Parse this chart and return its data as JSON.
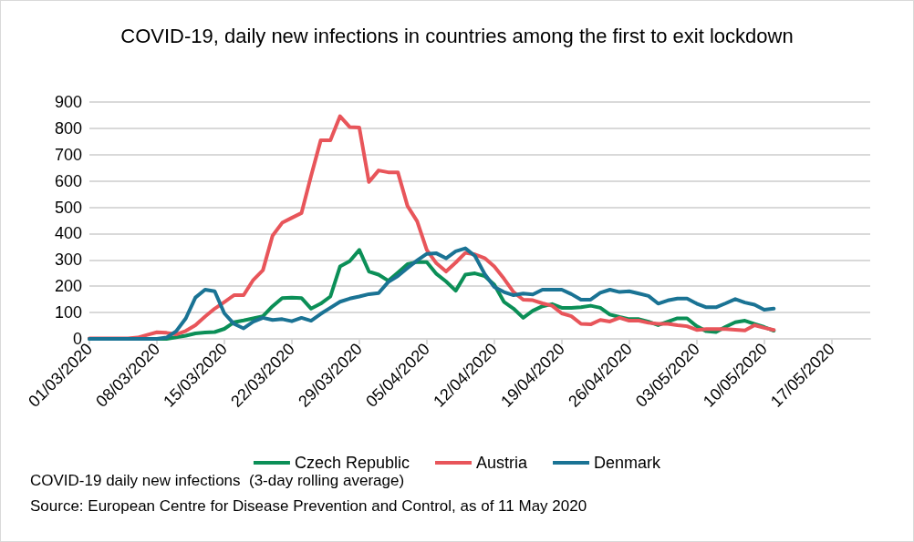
{
  "chart_data": {
    "type": "line",
    "title": "COVID-19, daily new infections in countries among the first to exit lockdown",
    "x": [
      "2020-03-01",
      "2020-03-02",
      "2020-03-03",
      "2020-03-04",
      "2020-03-05",
      "2020-03-06",
      "2020-03-07",
      "2020-03-08",
      "2020-03-09",
      "2020-03-10",
      "2020-03-11",
      "2020-03-12",
      "2020-03-13",
      "2020-03-14",
      "2020-03-15",
      "2020-03-16",
      "2020-03-17",
      "2020-03-18",
      "2020-03-19",
      "2020-03-20",
      "2020-03-21",
      "2020-03-22",
      "2020-03-23",
      "2020-03-24",
      "2020-03-25",
      "2020-03-26",
      "2020-03-27",
      "2020-03-28",
      "2020-03-29",
      "2020-03-30",
      "2020-03-31",
      "2020-04-01",
      "2020-04-02",
      "2020-04-03",
      "2020-04-04",
      "2020-04-05",
      "2020-04-06",
      "2020-04-07",
      "2020-04-08",
      "2020-04-09",
      "2020-04-10",
      "2020-04-11",
      "2020-04-12",
      "2020-04-13",
      "2020-04-14",
      "2020-04-15",
      "2020-04-16",
      "2020-04-17",
      "2020-04-18",
      "2020-04-19",
      "2020-04-20",
      "2020-04-21",
      "2020-04-22",
      "2020-04-23",
      "2020-04-24",
      "2020-04-25",
      "2020-04-26",
      "2020-04-27",
      "2020-04-28",
      "2020-04-29",
      "2020-04-30",
      "2020-05-01",
      "2020-05-02",
      "2020-05-03",
      "2020-05-04",
      "2020-05-05",
      "2020-05-06",
      "2020-05-07",
      "2020-05-08",
      "2020-05-09",
      "2020-05-10",
      "2020-05-11"
    ],
    "series": [
      {
        "name": "Czech Republic",
        "color": "#0b8f57",
        "values": [
          0,
          0,
          0,
          0,
          0,
          0,
          0,
          0,
          0,
          6,
          12,
          21,
          24,
          26,
          38,
          63,
          70,
          78,
          86,
          124,
          155,
          157,
          155,
          115,
          134,
          161,
          275,
          295,
          338,
          256,
          244,
          221,
          252,
          284,
          292,
          292,
          247,
          218,
          183,
          244,
          249,
          239,
          206,
          141,
          115,
          80,
          107,
          124,
          132,
          118,
          118,
          120,
          126,
          118,
          92,
          83,
          75,
          75,
          65,
          52,
          65,
          78,
          78,
          48,
          29,
          26,
          46,
          63,
          69,
          57,
          45,
          31
        ]
      },
      {
        "name": "Austria",
        "color": "#e8555a",
        "values": [
          2,
          2,
          2,
          2,
          2,
          5,
          15,
          25,
          23,
          17,
          30,
          52,
          85,
          115,
          140,
          166,
          166,
          224,
          261,
          392,
          441,
          460,
          478,
          620,
          755,
          755,
          846,
          805,
          803,
          596,
          640,
          633,
          633,
          505,
          447,
          338,
          287,
          256,
          290,
          327,
          321,
          307,
          275,
          229,
          178,
          149,
          147,
          135,
          126,
          97,
          86,
          57,
          55,
          72,
          66,
          80,
          69,
          69,
          61,
          57,
          57,
          52,
          48,
          34,
          37,
          37,
          37,
          35,
          32,
          52,
          42,
          34
        ]
      },
      {
        "name": "Denmark",
        "color": "#1a7394",
        "values": [
          0,
          0,
          0,
          0,
          0,
          0,
          0,
          0,
          5,
          29,
          78,
          157,
          187,
          181,
          97,
          57,
          40,
          65,
          80,
          72,
          75,
          67,
          80,
          69,
          95,
          118,
          141,
          153,
          161,
          170,
          174,
          216,
          239,
          269,
          298,
          323,
          325,
          306,
          333,
          344,
          315,
          247,
          197,
          178,
          166,
          172,
          169,
          187,
          187,
          187,
          170,
          149,
          149,
          175,
          187,
          178,
          181,
          172,
          163,
          134,
          146,
          153,
          153,
          134,
          120,
          120,
          135,
          151,
          138,
          130,
          111,
          115
        ]
      }
    ],
    "xlim": [
      "2020-03-01",
      "2020-05-21"
    ],
    "xticks": [
      {
        "value": "2020-03-01",
        "label": "01/03/2020"
      },
      {
        "value": "2020-03-08",
        "label": "08/03/2020"
      },
      {
        "value": "2020-03-15",
        "label": "15/03/2020"
      },
      {
        "value": "2020-03-22",
        "label": "22/03/2020"
      },
      {
        "value": "2020-03-29",
        "label": "29/03/2020"
      },
      {
        "value": "2020-04-05",
        "label": "05/04/2020"
      },
      {
        "value": "2020-04-12",
        "label": "12/04/2020"
      },
      {
        "value": "2020-04-19",
        "label": "19/04/2020"
      },
      {
        "value": "2020-04-26",
        "label": "26/04/2020"
      },
      {
        "value": "2020-05-03",
        "label": "03/05/2020"
      },
      {
        "value": "2020-05-10",
        "label": "10/05/2020"
      },
      {
        "value": "2020-05-17",
        "label": "17/05/2020"
      }
    ],
    "ylim": [
      0,
      900
    ],
    "yticks": [
      0,
      100,
      200,
      300,
      400,
      500,
      600,
      700,
      800,
      900
    ],
    "grid": "y",
    "legend": "bottom",
    "marker": "none",
    "line_style": "solid",
    "annotations": [
      "COVID-19 daily new infections  (3-day rolling average)",
      "Source: European Centre for Disease Prevention and Control, as of 11 May 2020"
    ]
  }
}
